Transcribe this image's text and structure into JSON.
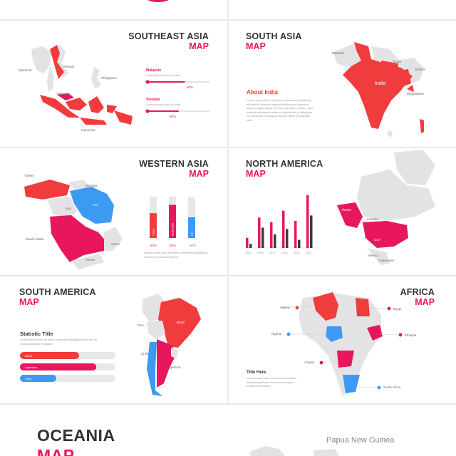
{
  "southeast_asia": {
    "title": "SOUTHEAST ASIA",
    "subtitle": "MAP",
    "countries": [
      "Myanmar",
      "Vietnam",
      "Philippines",
      "Malaysia",
      "Indonesia"
    ],
    "stats": [
      {
        "label": "Malaysia",
        "desc": "Lorem ipsum dolor sit amet",
        "value": 60,
        "value_text": "60%"
      },
      {
        "label": "Vietnam",
        "desc": "Lorem ipsum dolor sit amet",
        "value": 50,
        "value_text": "50%"
      }
    ]
  },
  "south_asia": {
    "title": "SOUTH ASIA",
    "subtitle": "MAP",
    "countries": [
      "Pakistan",
      "Nepal",
      "Bhutan",
      "India",
      "Bangladesh"
    ],
    "about_title": "About India",
    "about_text": "Lorem ipsum dolor sit amet, consectetur adipiscing elit sed do eiusmod tempor incididunt ut labore et dolore magna aliqua. Ut enim ad minim veniam, quis nostrud exercitation ullamco laboris nisi ut aliquip ex ea commodo consequat reprehenderit in voluptate velit."
  },
  "western_asia": {
    "title": "WESTERN ASIA",
    "subtitle": "MAP",
    "countries": [
      "Turkey",
      "Georgia",
      "Iraq",
      "Iran",
      "Saudi Arabia",
      "Oman",
      "Yemen"
    ],
    "bars": [
      {
        "label": "Turkey",
        "value": 60,
        "value_text": "60%",
        "color": "#f03c3c"
      },
      {
        "label": "Saudi Arabia",
        "value": 80,
        "value_text": "80%",
        "color": "#e8175d"
      },
      {
        "label": "Iran",
        "value": 50,
        "value_text": "50%",
        "color": "#3d9af2"
      }
    ],
    "caption": "Lorem ipsum dolor sit amet consectetur adipiscing elit sed do eiusmod tempor"
  },
  "north_america": {
    "title": "NORTH AMERICA",
    "subtitle": "MAP",
    "countries": [
      "Alaska",
      "Canada",
      "USA",
      "Mexico",
      "Guatemala"
    ],
    "chart_data": {
      "type": "bar",
      "categories": [
        "2006",
        "2009",
        "2012",
        "2015",
        "2018",
        "2021"
      ],
      "series": [
        {
          "values": [
            15,
            45,
            38,
            55,
            40,
            78
          ]
        },
        {
          "values": [
            6,
            30,
            20,
            28,
            12,
            48
          ]
        }
      ],
      "ylim": [
        0,
        80
      ]
    }
  },
  "south_america": {
    "title": "SOUTH AMERICA",
    "subtitle": "MAP",
    "countries": [
      "Peru",
      "Brazil",
      "Chile",
      "Argentina"
    ],
    "stat_title": "Statistic Title",
    "stat_text": "Lorem ipsum dolor sit amet consectetur adipiscing elit sed do eiusmod tempor incididunt",
    "bars": [
      {
        "label": "Brazil",
        "value": 62,
        "color": "#f03c3c"
      },
      {
        "label": "Argentina",
        "value": 80,
        "color": "#e8175d"
      },
      {
        "label": "Chile",
        "value": 38,
        "color": "#3d9af2"
      }
    ]
  },
  "africa": {
    "title": "AFRICA",
    "subtitle": "MAP",
    "countries": [
      "Algeria",
      "Egypt",
      "Nigeria",
      "Ethiopia",
      "Angola",
      "South Africa"
    ],
    "text_title": "Title Here",
    "text_body": "Lorem ipsum dolor sit amet consectetur adipiscing elit sed do eiusmod tempor incididunt ut labore"
  },
  "oceania": {
    "title": "OCEANIA",
    "subtitle": "MAP",
    "country_label": "Papua New Guinea"
  },
  "colors": {
    "red": "#f03c3c",
    "pink": "#e8175d",
    "blue": "#3d9af2",
    "gray": "#e3e3e6",
    "dark": "#333333"
  }
}
